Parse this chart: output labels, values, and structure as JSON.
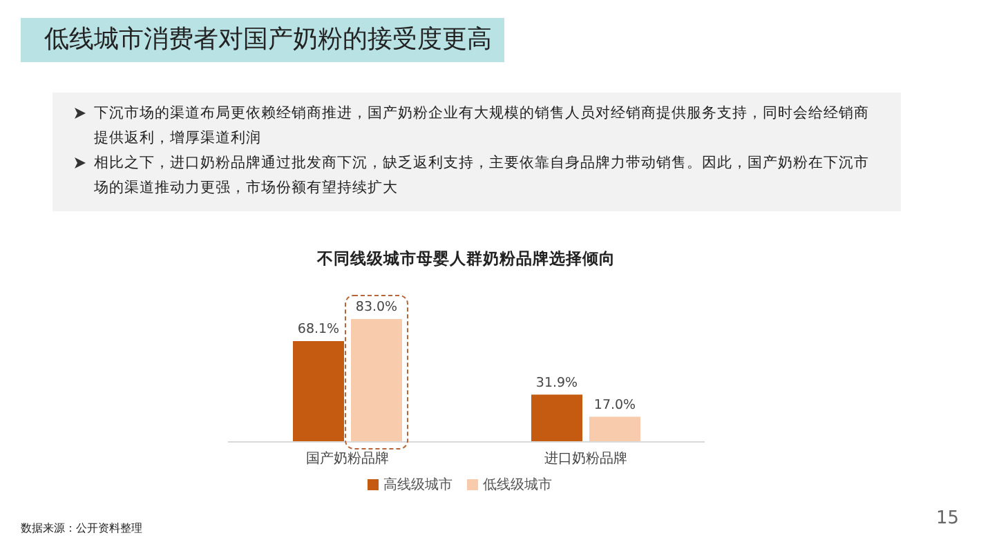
{
  "chart_data": {
    "type": "bar",
    "title": "不同线级城市母婴人群奶粉品牌选择倾向",
    "categories": [
      "国产奶粉品牌",
      "进口奶粉品牌"
    ],
    "series": [
      {
        "name": "高线级城市",
        "color": "#c55a11",
        "values": [
          68.1,
          31.9
        ],
        "value_labels": [
          "68.1%",
          "31.9%"
        ]
      },
      {
        "name": "低线级城市",
        "color": "#f8cbad",
        "values": [
          83.0,
          17.0
        ],
        "value_labels": [
          "83.0%",
          "17.0%"
        ]
      }
    ],
    "legend": "bottom",
    "annotations": [
      "低线城市消费者对国产奶粉的接受度更高",
      "下沉市场的渠道布局更依赖经销商推进，国产奶粉企业有大规模的销售人员对经销商提供服务支持，同时会给经销商提供返利，增厚渠道利润",
      "相比之下，进口奶粉品牌通过批发商下沉，缺乏返利支持，主要依靠自身品牌力带动销售。因此，国产奶粉在下沉市场的渠道推动力更强，市场份额有望持续扩大",
      "数据来源：公开资料整理",
      "15"
    ]
  }
}
